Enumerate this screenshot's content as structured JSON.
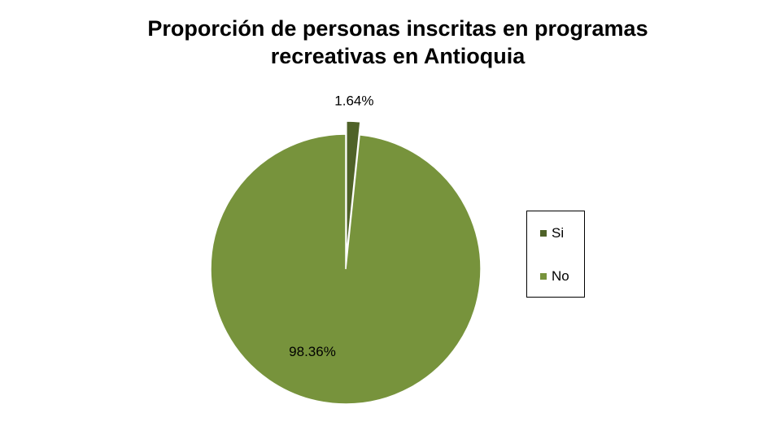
{
  "chart_data": {
    "type": "pie",
    "title": [
      "Proporción de personas inscritas en programas",
      "recreativas en Antioquia"
    ],
    "categories": [
      "Si",
      "No"
    ],
    "values": [
      1.64,
      98.36
    ],
    "data_labels": [
      "1.64%",
      "98.36%"
    ],
    "colors": [
      "#4f6228",
      "#77933c"
    ],
    "legend_position": "right",
    "exploded_slice": "Si"
  }
}
